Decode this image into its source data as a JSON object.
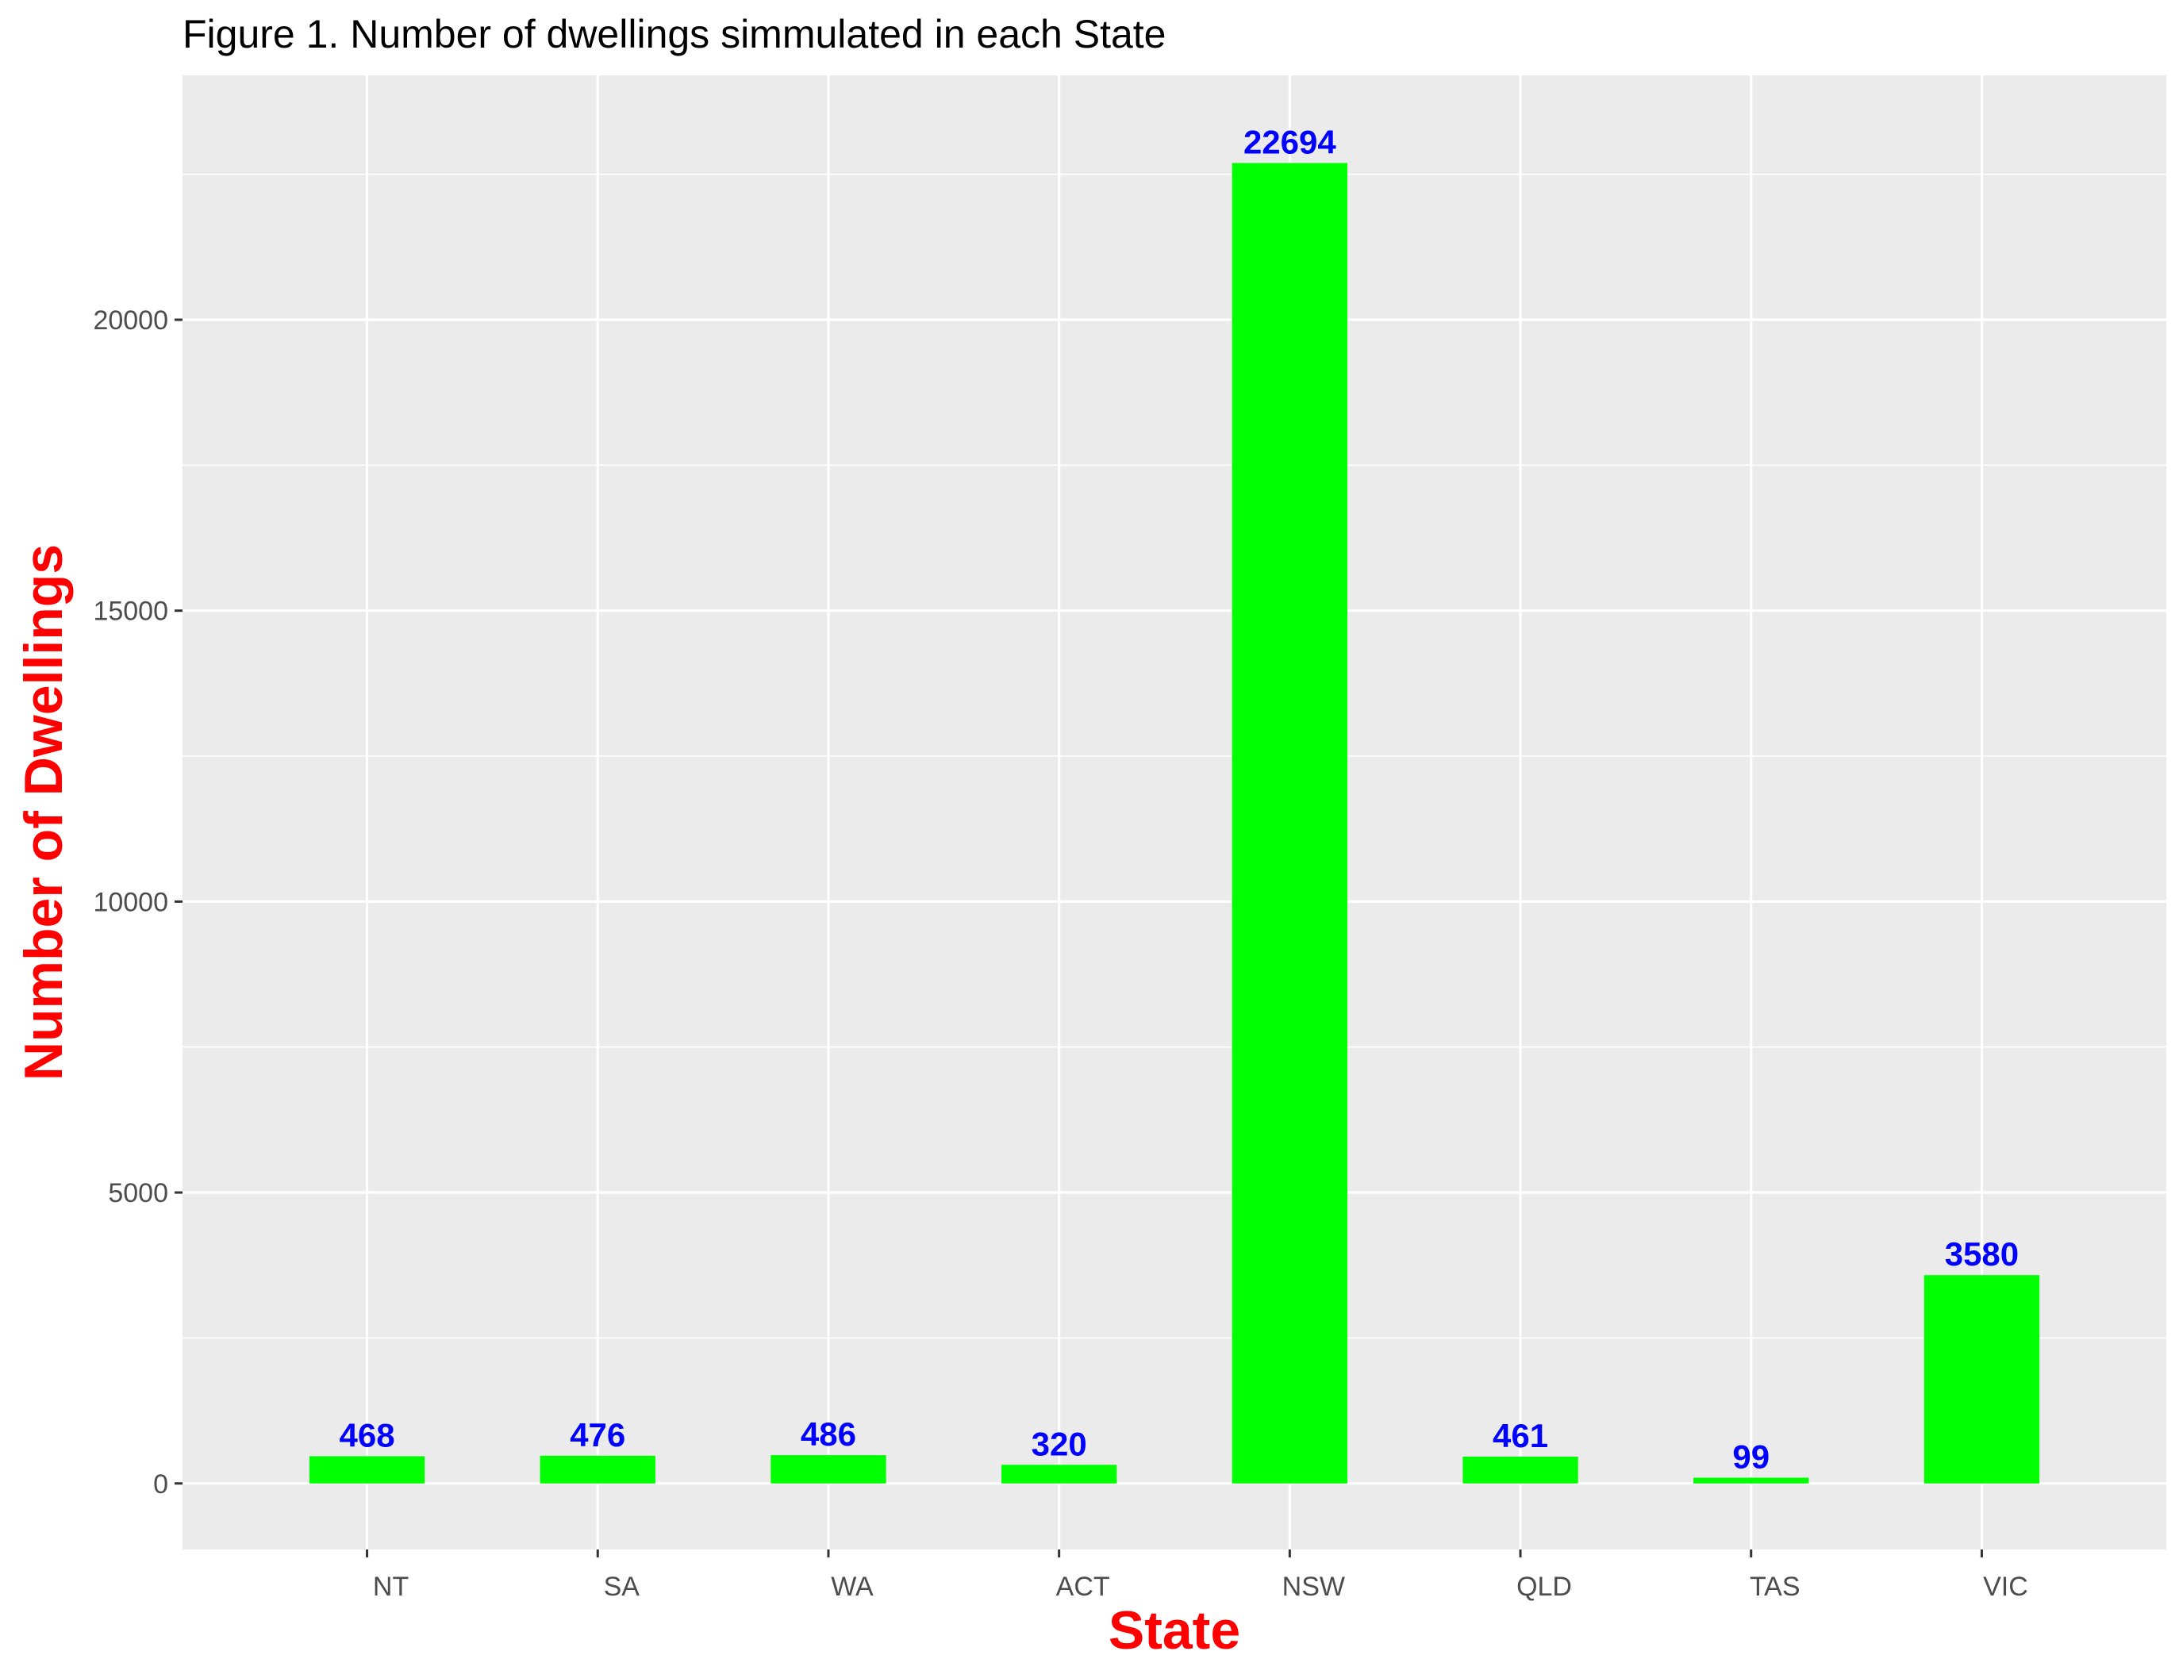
{
  "chart_data": {
    "type": "bar",
    "title": "Figure 1. Number of dwellings simmulated in each State",
    "xlabel": "State",
    "ylabel": "Number of Dwellings",
    "categories": [
      "NT",
      "SA",
      "WA",
      "ACT",
      "NSW",
      "QLD",
      "TAS",
      "VIC"
    ],
    "values": [
      468,
      476,
      486,
      320,
      22694,
      461,
      99,
      3580
    ],
    "data_labels": [
      "468",
      "476",
      "486",
      "320",
      "22694",
      "461",
      "99",
      "3580"
    ],
    "yticks": [
      0,
      5000,
      10000,
      15000,
      20000
    ],
    "ytick_labels": [
      "0",
      "5000",
      "10000",
      "15000",
      "20000"
    ],
    "ylim": [
      -1135,
      24200
    ],
    "grid": true,
    "colors": {
      "bar": "#00ff00",
      "panel": "#ebebeb",
      "grid": "#ffffff",
      "data_label": "#0000ff",
      "axis_title": "#ff0000",
      "tick_label": "#4d4d4d",
      "title": "#000000"
    }
  }
}
